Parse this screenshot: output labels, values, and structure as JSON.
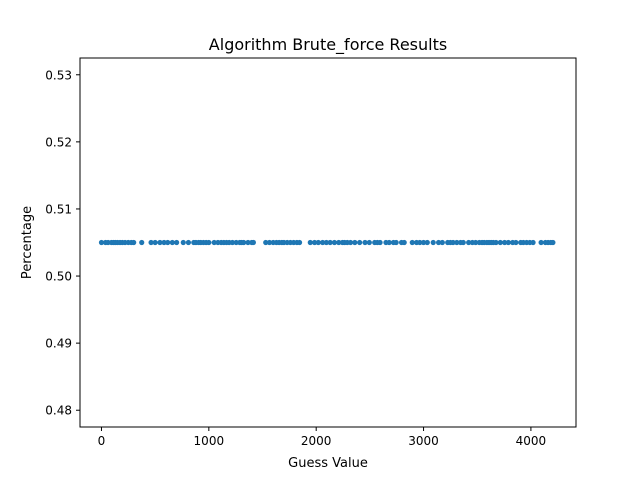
{
  "chart_data": {
    "type": "scatter",
    "title": "Algorithm Brute_force Results",
    "xlabel": "Guess Value",
    "ylabel": "Percentage",
    "xlim": [
      -200,
      4420
    ],
    "ylim": [
      0.4775,
      0.5325
    ],
    "xticks": [
      0,
      1000,
      2000,
      3000,
      4000
    ],
    "xtick_labels": [
      "0",
      "1000",
      "2000",
      "3000",
      "4000"
    ],
    "yticks": [
      0.48,
      0.49,
      0.5,
      0.51,
      0.52,
      0.53
    ],
    "ytick_labels": [
      "0.48",
      "0.49",
      "0.50",
      "0.51",
      "0.52",
      "0.53"
    ],
    "grid": false,
    "legend": "none",
    "marker_color": "#1f77b4",
    "series": [
      {
        "y_constant": 0.505,
        "x": [
          0,
          38,
          62,
          93,
          113,
          130,
          150,
          173,
          195,
          220,
          250,
          278,
          300,
          375,
          462,
          500,
          545,
          583,
          617,
          660,
          700,
          762,
          810,
          860,
          880,
          905,
          925,
          950,
          975,
          1000,
          1050,
          1085,
          1115,
          1140,
          1165,
          1190,
          1220,
          1255,
          1288,
          1305,
          1325,
          1365,
          1400,
          1415,
          1530,
          1565,
          1600,
          1630,
          1655,
          1680,
          1700,
          1730,
          1760,
          1790,
          1820,
          1845,
          1945,
          1985,
          2020,
          2060,
          2095,
          2130,
          2170,
          2210,
          2245,
          2265,
          2290,
          2320,
          2360,
          2405,
          2455,
          2495,
          2545,
          2570,
          2595,
          2650,
          2680,
          2720,
          2745,
          2795,
          2820,
          2895,
          2935,
          2965,
          3000,
          3035,
          3090,
          3140,
          3175,
          3225,
          3250,
          3275,
          3310,
          3345,
          3370,
          3420,
          3455,
          3485,
          3520,
          3545,
          3565,
          3590,
          3610,
          3630,
          3650,
          3675,
          3715,
          3755,
          3790,
          3830,
          3860,
          3905,
          3930,
          3960,
          3990,
          4020,
          4095,
          4135,
          4160,
          4185,
          4205
        ]
      }
    ]
  }
}
